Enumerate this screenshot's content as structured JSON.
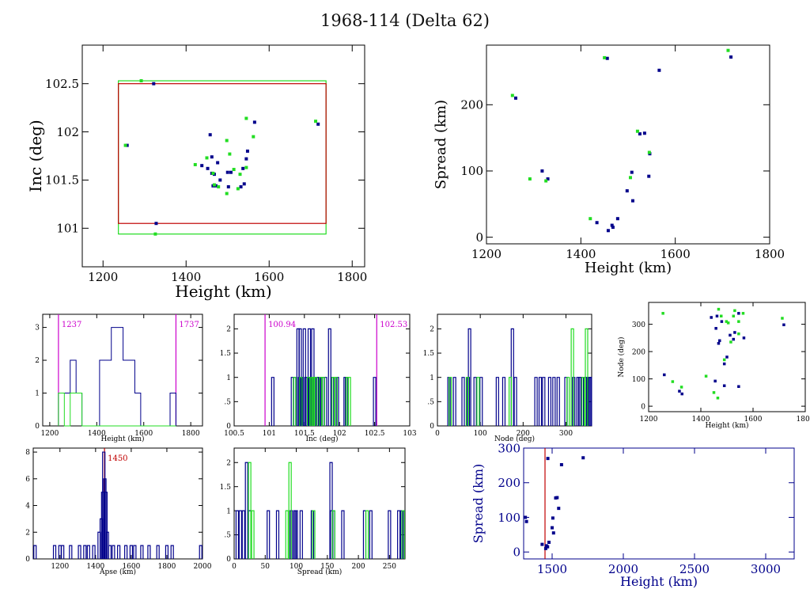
{
  "page": {
    "title": "1968-114 (Delta 62)"
  },
  "colors": {
    "axis": "#000000",
    "blue": "#00008b",
    "green": "#22dd22",
    "red": "#c00000",
    "magenta": "#cc00cc"
  },
  "chart_data": [
    {
      "id": "inc_vs_height",
      "type": "scatter",
      "xlabel": "Height (km)",
      "ylabel": "Inc (deg)",
      "xlim": [
        1150,
        1830
      ],
      "ylim": [
        100.6,
        102.9
      ],
      "xticks": [
        1200,
        1400,
        1600,
        1800
      ],
      "yticks": [
        101,
        101.5,
        102,
        102.5
      ],
      "ytick_labels": [
        "101",
        "101.5",
        "102",
        "102.5"
      ],
      "rects": [
        {
          "color": "green",
          "x": [
            1237,
            1737
          ],
          "y": [
            100.94,
            102.53
          ]
        },
        {
          "color": "red",
          "x": [
            1237,
            1737
          ],
          "y": [
            101.05,
            102.5
          ]
        }
      ],
      "series": [
        {
          "color": "blue",
          "x": [
            1258,
            1322,
            1328,
            1458,
            1462,
            1438,
            1452,
            1462,
            1476,
            1465,
            1472,
            1500,
            1502,
            1508,
            1532,
            1537,
            1545,
            1548,
            1540,
            1565,
            1718,
            1468,
            1482
          ],
          "y": [
            101.86,
            102.5,
            101.05,
            101.97,
            101.74,
            101.65,
            101.62,
            101.57,
            101.68,
            101.44,
            101.44,
            101.58,
            101.43,
            101.58,
            101.43,
            101.62,
            101.72,
            101.8,
            101.46,
            102.1,
            102.08,
            101.56,
            101.5
          ]
        },
        {
          "color": "green",
          "x": [
            1254,
            1292,
            1326,
            1422,
            1450,
            1468,
            1478,
            1498,
            1505,
            1515,
            1525,
            1545,
            1545,
            1562,
            1712,
            1498,
            1530,
            1465
          ],
          "y": [
            101.86,
            102.53,
            100.94,
            101.66,
            101.73,
            101.45,
            101.43,
            101.91,
            101.77,
            101.61,
            101.41,
            101.63,
            102.14,
            101.95,
            102.11,
            101.36,
            101.56,
            101.57
          ]
        }
      ]
    },
    {
      "id": "spread_vs_height",
      "type": "scatter",
      "xlabel": "Height (km)",
      "ylabel": "Spread (km)",
      "xlim": [
        1200,
        1800
      ],
      "ylim": [
        -10,
        290
      ],
      "xticks": [
        1200,
        1400,
        1600,
        1800
      ],
      "yticks": [
        0,
        100,
        200
      ],
      "series": [
        {
          "color": "blue",
          "x": [
            1262,
            1318,
            1330,
            1434,
            1458,
            1466,
            1468,
            1478,
            1498,
            1508,
            1510,
            1525,
            1535,
            1546,
            1544,
            1566,
            1718,
            1456
          ],
          "y": [
            210,
            100,
            88,
            22,
            10,
            18,
            15,
            28,
            70,
            98,
            55,
            156,
            157,
            126,
            92,
            252,
            272,
            270
          ]
        },
        {
          "color": "green",
          "x": [
            1255,
            1292,
            1326,
            1420,
            1450,
            1520,
            1505,
            1545,
            1712
          ],
          "y": [
            214,
            88,
            85,
            28,
            271,
            160,
            90,
            128,
            282
          ]
        }
      ]
    },
    {
      "id": "hist_height",
      "type": "histogram",
      "xlabel": "Height (km)",
      "xlim": [
        1170,
        1850
      ],
      "ylim": [
        0,
        3.4
      ],
      "xticks": [
        1200,
        1400,
        1600,
        1800
      ],
      "yticks": [
        0,
        1,
        2,
        3
      ],
      "vlines": [
        {
          "x": 1237,
          "label": "1237",
          "color": "magenta"
        },
        {
          "x": 1737,
          "label": "1737",
          "color": "magenta"
        }
      ],
      "series": [
        {
          "color": "blue",
          "bin_edges": [
            1237,
            1262,
            1287,
            1312,
            1337,
            1362,
            1387,
            1412,
            1437,
            1462,
            1487,
            1512,
            1537,
            1562,
            1587,
            1612,
            1637,
            1662,
            1687,
            1712,
            1737
          ],
          "counts": [
            1,
            1,
            2,
            1,
            0,
            0,
            0,
            2,
            2,
            3,
            3,
            2,
            2,
            1,
            0,
            0,
            0,
            0,
            0,
            1
          ]
        },
        {
          "color": "green",
          "bin_edges": [
            1237,
            1262,
            1287,
            1312,
            1337,
            1362,
            1387,
            1412,
            1437,
            1462,
            1487,
            1512,
            1537,
            1562,
            1587,
            1612,
            1637,
            1662,
            1687,
            1712,
            1737
          ],
          "counts": [
            1,
            0,
            1,
            1,
            0,
            0,
            0,
            0,
            0,
            0,
            0,
            0,
            0,
            0,
            0,
            0,
            0,
            0,
            0,
            0
          ]
        }
      ]
    },
    {
      "id": "hist_inc",
      "type": "histogram",
      "xlabel": "Inc (deg)",
      "xlim": [
        100.5,
        103
      ],
      "ylim": [
        0,
        2.3
      ],
      "xticks": [
        100.5,
        101,
        101.5,
        102,
        102.5,
        103
      ],
      "xtick_labels": [
        "100.5",
        "101",
        "101.5",
        "102",
        "102.5",
        "103"
      ],
      "yticks": [
        0,
        0.5,
        1,
        1.5,
        2
      ],
      "ytick_labels": [
        "0",
        ".5",
        "1",
        "1.5",
        "2"
      ],
      "vlines": [
        {
          "x": 100.94,
          "label": "100.94",
          "color": "magenta"
        },
        {
          "x": 102.53,
          "label": "102.53",
          "color": "magenta"
        }
      ],
      "spikes": [
        {
          "color": "blue",
          "x": [
            101.05,
            101.36,
            101.41,
            101.43,
            101.44,
            101.46,
            101.5,
            101.56,
            101.57,
            101.58,
            101.62,
            101.65,
            101.68,
            101.72,
            101.74,
            101.8,
            101.86,
            101.97,
            102.08,
            102.1,
            102.5,
            101.33,
            101.52,
            101.6,
            101.77,
            101.9
          ],
          "y": [
            1,
            1,
            2,
            1,
            2,
            1,
            2,
            1,
            2,
            1,
            2,
            1,
            1,
            1,
            1,
            1,
            2,
            1,
            1,
            1,
            1,
            1,
            1,
            1,
            1,
            1
          ]
        },
        {
          "color": "green",
          "x": [
            101.36,
            101.45,
            101.56,
            101.61,
            101.63,
            101.66,
            101.73,
            101.77,
            101.91,
            101.95,
            102.11,
            102.14
          ],
          "y": [
            1,
            1,
            1,
            1,
            1,
            1,
            1,
            1,
            1,
            1,
            1,
            1
          ]
        }
      ]
    },
    {
      "id": "hist_node",
      "type": "histogram",
      "xlabel": "Node (deg)",
      "xlim": [
        0,
        360
      ],
      "ylim": [
        0,
        2.3
      ],
      "xticks": [
        0,
        100,
        200,
        300
      ],
      "yticks": [
        0,
        0.5,
        1,
        1.5,
        2
      ],
      "ytick_labels": [
        "0",
        ".5",
        "1",
        "1.5",
        "2"
      ],
      "spikes": [
        {
          "color": "blue",
          "x": [
            27,
            40,
            60,
            72,
            75,
            88,
            102,
            140,
            155,
            175,
            182,
            230,
            240,
            248,
            262,
            272,
            282,
            300,
            318,
            328,
            338,
            345,
            352,
            357,
            355,
            332
          ],
          "y": [
            1,
            1,
            1,
            1,
            2,
            1,
            1,
            1,
            1,
            2,
            1,
            1,
            1,
            1,
            1,
            1,
            1,
            1,
            1,
            1,
            1,
            1,
            1,
            1,
            1,
            1
          ]
        },
        {
          "color": "green",
          "x": [
            30,
            70,
            95,
            170,
            305,
            315,
            340,
            348
          ],
          "y": [
            1,
            1,
            1,
            1,
            1,
            2,
            1,
            2
          ]
        }
      ]
    },
    {
      "id": "node_vs_height",
      "type": "scatter",
      "xlabel": "Height (km)",
      "ylabel": "Node (deg)",
      "xlim": [
        1200,
        1800
      ],
      "ylim": [
        -20,
        380
      ],
      "xticks": [
        1200,
        1400,
        1600,
        1800
      ],
      "yticks": [
        0,
        100,
        200,
        300
      ],
      "series": [
        {
          "color": "blue",
          "x": [
            1260,
            1318,
            1328,
            1440,
            1455,
            1462,
            1458,
            1468,
            1472,
            1480,
            1490,
            1500,
            1512,
            1525,
            1530,
            1545,
            1565,
            1718,
            1490,
            1545
          ],
          "y": [
            115,
            55,
            45,
            325,
            92,
            330,
            285,
            230,
            240,
            310,
            75,
            180,
            260,
            245,
            270,
            72,
            250,
            298,
            155,
            340
          ]
        },
        {
          "color": "green",
          "x": [
            1255,
            1292,
            1326,
            1420,
            1450,
            1468,
            1478,
            1498,
            1505,
            1515,
            1525,
            1545,
            1545,
            1562,
            1712,
            1490,
            1530,
            1465
          ],
          "y": [
            340,
            90,
            70,
            110,
            50,
            355,
            330,
            310,
            305,
            235,
            330,
            310,
            265,
            340,
            322,
            170,
            350,
            30
          ]
        }
      ]
    },
    {
      "id": "hist_apse",
      "type": "histogram",
      "xlabel": "Apse (km)",
      "xlim": [
        1050,
        2000
      ],
      "ylim": [
        0,
        8.3
      ],
      "xticks": [
        1200,
        1400,
        1600,
        1800,
        2000
      ],
      "yticks": [
        0,
        2,
        4,
        6,
        8
      ],
      "vlines": [
        {
          "x": 1450,
          "label": "1450",
          "color": "red"
        }
      ],
      "spikes": [
        {
          "color": "blue",
          "x": [
            1060,
            1170,
            1200,
            1215,
            1260,
            1310,
            1340,
            1360,
            1390,
            1420,
            1432,
            1440,
            1446,
            1452,
            1458,
            1466,
            1480,
            1500,
            1530,
            1570,
            1600,
            1620,
            1660,
            1700,
            1750,
            1800,
            1830,
            1990
          ],
          "y": [
            1,
            1,
            1,
            1,
            1,
            1,
            1,
            1,
            1,
            2,
            3,
            5,
            8,
            6,
            5,
            2,
            1,
            1,
            1,
            1,
            1,
            1,
            1,
            1,
            1,
            1,
            1,
            1
          ]
        }
      ]
    },
    {
      "id": "hist_spread",
      "type": "histogram",
      "xlabel": "Spread (km)",
      "xlim": [
        0,
        275
      ],
      "ylim": [
        0,
        2.3
      ],
      "xticks": [
        0,
        50,
        100,
        150,
        200,
        250
      ],
      "yticks": [
        0,
        0.5,
        1,
        1.5,
        2
      ],
      "ytick_labels": [
        "0",
        ".5",
        "1",
        "1.5",
        "2"
      ],
      "spikes": [
        {
          "color": "blue",
          "x": [
            5,
            10,
            15,
            20,
            25,
            55,
            70,
            92,
            98,
            100,
            108,
            126,
            156,
            157,
            160,
            175,
            210,
            220,
            250,
            265,
            270,
            272
          ],
          "y": [
            1,
            1,
            1,
            2,
            1,
            1,
            1,
            1,
            1,
            1,
            1,
            1,
            2,
            1,
            1,
            1,
            1,
            1,
            1,
            1,
            1,
            1
          ]
        },
        {
          "color": "green",
          "x": [
            25,
            30,
            85,
            90,
            128,
            160,
            214,
            272
          ],
          "y": [
            2,
            1,
            1,
            2,
            1,
            1,
            1,
            1
          ]
        }
      ]
    },
    {
      "id": "spread_vs_height_wide",
      "type": "scatter",
      "xlabel": "Height (km)",
      "ylabel": "Spread (km)",
      "xlim": [
        1300,
        3200
      ],
      "ylim": [
        -20,
        300
      ],
      "xticks": [
        1500,
        2000,
        2500,
        3000
      ],
      "yticks": [
        0,
        100,
        200,
        300
      ],
      "vlines": [
        {
          "x": 1450,
          "color": "red"
        }
      ],
      "series": [
        {
          "color": "blue",
          "x": [
            1312,
            1320,
            1430,
            1455,
            1460,
            1468,
            1478,
            1500,
            1505,
            1510,
            1525,
            1535,
            1546,
            1566,
            1718,
            1470
          ],
          "y": [
            100,
            88,
            22,
            10,
            18,
            15,
            28,
            70,
            98,
            55,
            156,
            157,
            126,
            252,
            272,
            270
          ]
        }
      ]
    }
  ]
}
